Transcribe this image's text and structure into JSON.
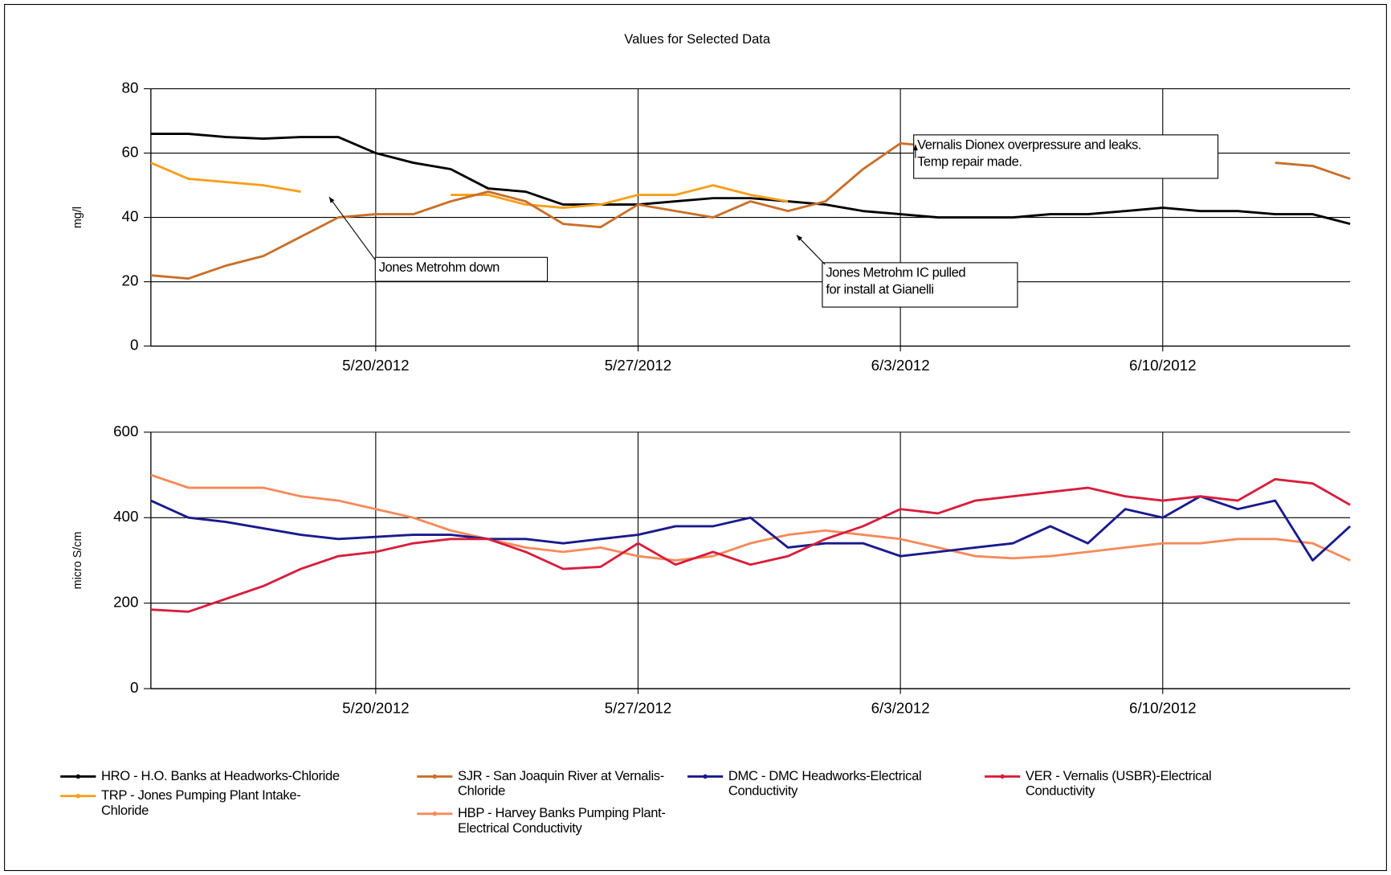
{
  "chart_data": [
    {
      "type": "line",
      "title": "Values for Selected Data",
      "ylabel": "mg/l",
      "grid": true,
      "legend": "bottom",
      "x": [
        "5/14/2012",
        "5/15/2012",
        "5/16/2012",
        "5/17/2012",
        "5/18/2012",
        "5/19/2012",
        "5/20/2012",
        "5/21/2012",
        "5/22/2012",
        "5/23/2012",
        "5/24/2012",
        "5/25/2012",
        "5/26/2012",
        "5/27/2012",
        "5/28/2012",
        "5/29/2012",
        "5/30/2012",
        "5/31/2012",
        "6/1/2012",
        "6/2/2012",
        "6/3/2012",
        "6/4/2012",
        "6/5/2012",
        "6/6/2012",
        "6/7/2012",
        "6/8/2012",
        "6/9/2012",
        "6/10/2012",
        "6/11/2012",
        "6/12/2012",
        "6/13/2012",
        "6/14/2012",
        "6/15/2012"
      ],
      "xlim": [
        "5/14/2012",
        "6/15/2012"
      ],
      "xticks": [
        "5/20/2012",
        "5/27/2012",
        "6/3/2012",
        "6/10/2012"
      ],
      "ylim": [
        0,
        80
      ],
      "yticks": [
        0,
        20,
        40,
        60,
        80
      ],
      "series": [
        {
          "name": "HRO - H.O. Banks at Headworks-Chloride",
          "color": "#000000",
          "values": [
            66,
            66,
            65,
            64.5,
            65,
            65,
            60,
            57,
            55,
            49,
            48,
            44,
            44,
            44,
            45,
            46,
            46,
            45,
            44,
            42,
            41,
            40,
            40,
            40,
            41,
            41,
            42,
            43,
            42,
            42,
            41,
            41,
            38
          ]
        },
        {
          "name": "TRP - Jones Pumping Plant Intake-Chloride",
          "color": "#f5a01a",
          "values": [
            57,
            52,
            51,
            50,
            48,
            null,
            null,
            null,
            47,
            47,
            44,
            43,
            44,
            47,
            47,
            50,
            47,
            45,
            null,
            null,
            null,
            null,
            null,
            null,
            null,
            null,
            null,
            null,
            null,
            null,
            null,
            null,
            null
          ]
        },
        {
          "name": "SJR - San Joaquin River at Vernalis-Chloride",
          "color": "#c8702a",
          "values": [
            22,
            21,
            25,
            28,
            34,
            40,
            41,
            41,
            45,
            48,
            45,
            38,
            37,
            44,
            42,
            40,
            45,
            42,
            45,
            55,
            63,
            62,
            null,
            null,
            null,
            null,
            null,
            null,
            null,
            null,
            57,
            56,
            52
          ]
        }
      ],
      "annotations": [
        {
          "lines": [
            "Jones Metrohm down"
          ]
        },
        {
          "lines": [
            "Jones Metrohm IC pulled",
            "for install at Gianelli"
          ]
        },
        {
          "lines": [
            "Vernalis Dionex overpressure and leaks.",
            "Temp repair made."
          ]
        }
      ]
    },
    {
      "type": "line",
      "ylabel": "micro S/cm",
      "grid": true,
      "x": [
        "5/14/2012",
        "5/15/2012",
        "5/16/2012",
        "5/17/2012",
        "5/18/2012",
        "5/19/2012",
        "5/20/2012",
        "5/21/2012",
        "5/22/2012",
        "5/23/2012",
        "5/24/2012",
        "5/25/2012",
        "5/26/2012",
        "5/27/2012",
        "5/28/2012",
        "5/29/2012",
        "5/30/2012",
        "5/31/2012",
        "6/1/2012",
        "6/2/2012",
        "6/3/2012",
        "6/4/2012",
        "6/5/2012",
        "6/6/2012",
        "6/7/2012",
        "6/8/2012",
        "6/9/2012",
        "6/10/2012",
        "6/11/2012",
        "6/12/2012",
        "6/13/2012",
        "6/14/2012",
        "6/15/2012"
      ],
      "xlim": [
        "5/14/2012",
        "6/15/2012"
      ],
      "xticks": [
        "5/20/2012",
        "5/27/2012",
        "6/3/2012",
        "6/10/2012"
      ],
      "ylim": [
        0,
        600
      ],
      "yticks": [
        0,
        200,
        400,
        600
      ],
      "series": [
        {
          "name": "HBP - Harvey Banks Pumping Plant-Electrical Conductivity",
          "color": "#f58a5a",
          "values": [
            500,
            470,
            470,
            470,
            450,
            440,
            420,
            400,
            370,
            350,
            330,
            320,
            330,
            310,
            300,
            310,
            340,
            360,
            370,
            360,
            350,
            330,
            310,
            305,
            310,
            320,
            330,
            340,
            340,
            350,
            350,
            340,
            300
          ]
        },
        {
          "name": "DMC - DMC Headworks-Electrical Conductivity",
          "color": "#1a1a8c",
          "values": [
            440,
            400,
            390,
            375,
            360,
            350,
            355,
            360,
            360,
            350,
            350,
            340,
            350,
            360,
            380,
            380,
            400,
            330,
            340,
            340,
            310,
            320,
            330,
            340,
            380,
            340,
            420,
            400,
            450,
            420,
            440,
            300,
            380
          ]
        },
        {
          "name": "VER - Vernalis (USBR)-Electrical Conductivity",
          "color": "#d81e3c",
          "values": [
            185,
            180,
            210,
            240,
            280,
            310,
            320,
            340,
            350,
            350,
            320,
            280,
            285,
            340,
            290,
            320,
            290,
            310,
            350,
            380,
            420,
            410,
            440,
            450,
            460,
            470,
            450,
            440,
            450,
            440,
            490,
            480,
            430
          ]
        }
      ]
    }
  ]
}
